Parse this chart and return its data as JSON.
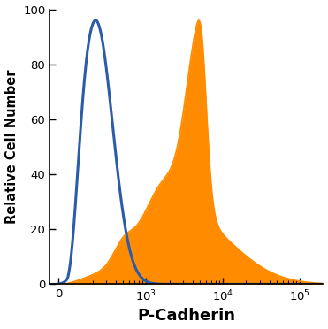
{
  "title": "",
  "xlabel": "P-Cadherin",
  "ylabel": "Relative Cell Number",
  "ylim": [
    0,
    100
  ],
  "yticks": [
    0,
    20,
    40,
    60,
    80,
    100
  ],
  "background_color": "#ffffff",
  "blue_color": "#2a5caa",
  "orange_color": "#ff8c00",
  "blue_linewidth": 2.2,
  "orange_linewidth": 1.2,
  "xlabel_fontsize": 13,
  "ylabel_fontsize": 10.5,
  "tick_fontsize": 9.5
}
